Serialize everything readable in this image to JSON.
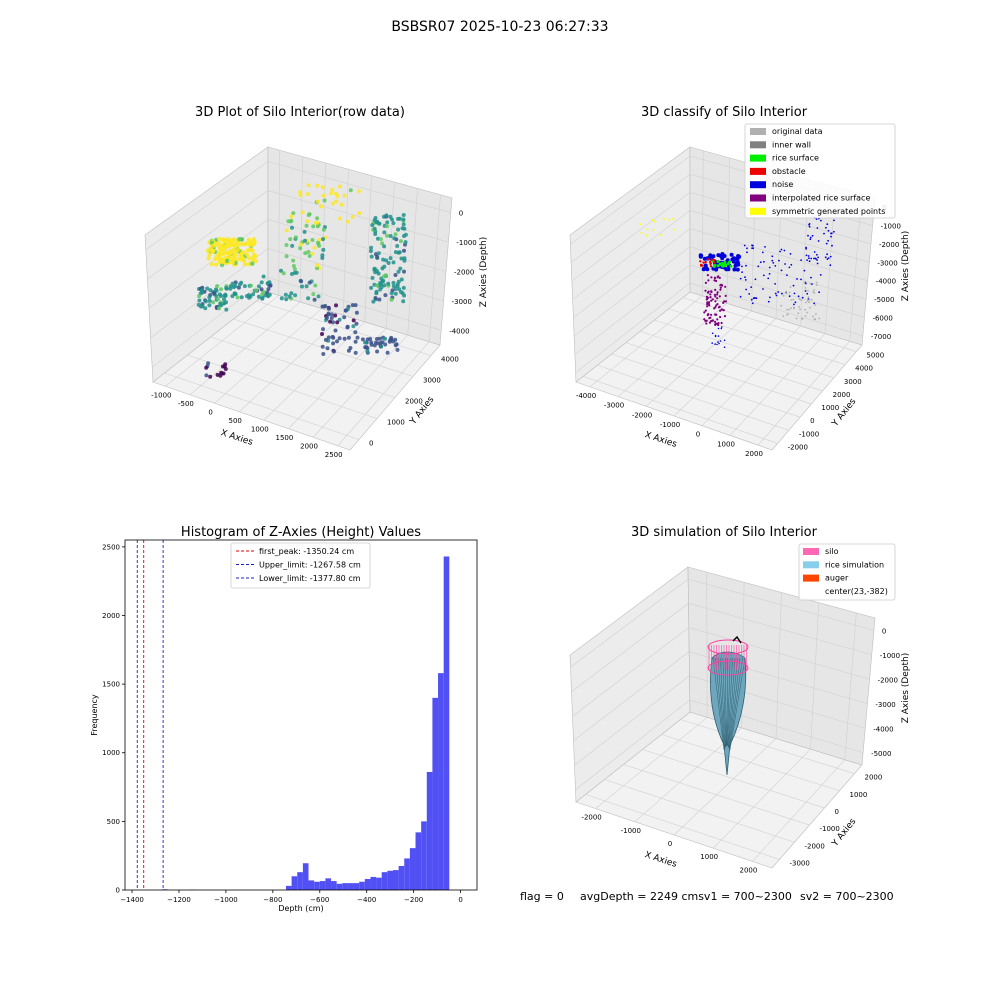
{
  "suptitle": "BSBSR07 2025-10-23 06:27:33",
  "footer": {
    "flag": "flag = 0",
    "avg": "avgDepth = 2249 cmsv1 = 700~2300",
    "sv2": "sv2 = 700~2300"
  },
  "colors": {
    "bar": "#5050f5",
    "peak": "#e00000",
    "limit": "#2020c0",
    "pane": "#f2f2f2",
    "grid": "#d0d0d0"
  },
  "chart_data": [
    {
      "type": "scatter",
      "projection": "3d",
      "title": "3D Plot of Silo Interior(row data)",
      "xlabel": "X Axies",
      "ylabel": "Y Axies",
      "zlabel": "Z Axies (Depth)",
      "xticks": [
        "-1000",
        "-500",
        "0",
        "500",
        "1000",
        "1500",
        "2000",
        "2500"
      ],
      "yticks": [
        "0",
        "1000",
        "2000",
        "3000",
        "4000"
      ],
      "zticks": [
        "0",
        "-1000",
        "-2000",
        "-3000",
        "-4000"
      ],
      "colormap": "viridis",
      "grid": true
    },
    {
      "type": "scatter",
      "projection": "3d",
      "title": "3D classify of Silo Interior",
      "xlabel": "X Axies",
      "ylabel": "Y Axies",
      "zlabel": "Z Axies (Depth)",
      "xticks": [
        "-4000",
        "-3000",
        "-2000",
        "-1000",
        "0",
        "1000",
        "2000"
      ],
      "yticks": [
        "-2000",
        "-1000",
        "0",
        "1000",
        "2000",
        "3000",
        "4000",
        "5000"
      ],
      "zticks": [
        "0",
        "-1000",
        "-2000",
        "-3000",
        "-4000",
        "-5000",
        "-6000",
        "-7000"
      ],
      "legend_position": "top-right",
      "legend": [
        {
          "label": "original data",
          "color": "#b0b0b0"
        },
        {
          "label": "inner wall",
          "color": "#808080"
        },
        {
          "label": "rice surface",
          "color": "#00ee00"
        },
        {
          "label": "obstacle",
          "color": "#ee0000"
        },
        {
          "label": "noise",
          "color": "#0000dd"
        },
        {
          "label": "interpolated rice surface",
          "color": "#800080"
        },
        {
          "label": "symmetric generated points",
          "color": "#ffff00"
        }
      ],
      "grid": true
    },
    {
      "type": "bar",
      "title": "Histogram of Z-Axies (Height) Values",
      "xlabel": "Depth (cm)",
      "ylabel": "Frequency",
      "xlim": [
        -1430,
        70
      ],
      "ylim": [
        0,
        2550
      ],
      "xticks": [
        -1400,
        -1200,
        -1000,
        -800,
        -600,
        -400,
        -200,
        0
      ],
      "yticks": [
        0,
        500,
        1000,
        1500,
        2000,
        2500
      ],
      "bin_width": 24,
      "bins": [
        {
          "x": -1272,
          "value": 5
        },
        {
          "x": -1152,
          "value": 3
        },
        {
          "x": -744,
          "value": 30
        },
        {
          "x": -720,
          "value": 100
        },
        {
          "x": -696,
          "value": 130
        },
        {
          "x": -672,
          "value": 195
        },
        {
          "x": -648,
          "value": 70
        },
        {
          "x": -624,
          "value": 60
        },
        {
          "x": -600,
          "value": 65
        },
        {
          "x": -576,
          "value": 85
        },
        {
          "x": -552,
          "value": 65
        },
        {
          "x": -528,
          "value": 45
        },
        {
          "x": -504,
          "value": 50
        },
        {
          "x": -480,
          "value": 50
        },
        {
          "x": -456,
          "value": 50
        },
        {
          "x": -432,
          "value": 60
        },
        {
          "x": -408,
          "value": 80
        },
        {
          "x": -384,
          "value": 95
        },
        {
          "x": -360,
          "value": 90
        },
        {
          "x": -336,
          "value": 130
        },
        {
          "x": -312,
          "value": 140
        },
        {
          "x": -288,
          "value": 145
        },
        {
          "x": -264,
          "value": 175
        },
        {
          "x": -240,
          "value": 230
        },
        {
          "x": -216,
          "value": 305
        },
        {
          "x": -192,
          "value": 420
        },
        {
          "x": -168,
          "value": 500
        },
        {
          "x": -144,
          "value": 860
        },
        {
          "x": -120,
          "value": 1400
        },
        {
          "x": -96,
          "value": 1580
        },
        {
          "x": -72,
          "value": 2430
        }
      ],
      "vlines": [
        {
          "label": "first_peak: -1350.24 cm",
          "x": -1350.24,
          "color": "#e00000"
        },
        {
          "label": "Upper_limit: -1267.58 cm",
          "x": -1267.58,
          "color": "#2020c0"
        },
        {
          "label": "Lower_limit: -1377.80 cm",
          "x": -1377.8,
          "color": "#2020c0"
        }
      ],
      "legend_position": "top-center"
    },
    {
      "type": "surface",
      "projection": "3d",
      "title": "3D simulation of Silo Interior",
      "xlabel": "X Axies",
      "ylabel": "Y Axies",
      "zlabel": "Z Axies (Depth)",
      "xticks": [
        "-2000",
        "-1000",
        "0",
        "1000",
        "2000"
      ],
      "yticks": [
        "-3000",
        "-2000",
        "-1000",
        "0",
        "1000",
        "2000"
      ],
      "zticks": [
        "0",
        "-1000",
        "-2000",
        "-3000",
        "-4000",
        "-5000"
      ],
      "legend_position": "top-right",
      "legend": [
        {
          "label": "silo",
          "color": "#ff69b4"
        },
        {
          "label": "rice simulation",
          "color": "#87ceeb"
        },
        {
          "label": "auger",
          "color": "#ff4500"
        },
        {
          "label": "center(23,-382)",
          "color": ""
        }
      ],
      "grid": true
    }
  ]
}
